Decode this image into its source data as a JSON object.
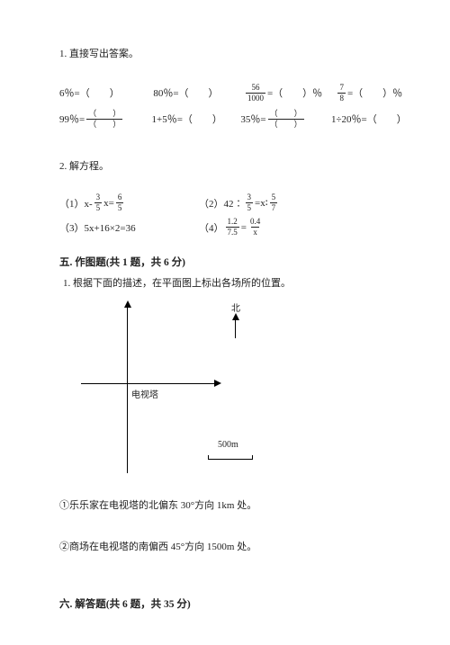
{
  "q1": {
    "title": "1. 直接写出答案。",
    "row1": {
      "a": "6％=（　　）",
      "b": "80％=（　　）",
      "c_pre": "",
      "c_num": "56",
      "c_den": "1000",
      "c_post": " =（　　）％",
      "d_num": "7",
      "d_den": "8",
      "d_post": " =（　　）％"
    },
    "row2": {
      "a_pre": "99％=",
      "a_num": "（　　）",
      "a_den": "（　　）",
      "b": "1+5％=（　　）",
      "c_pre": "35％=",
      "c_num": "（　　）",
      "c_den": "（　　）",
      "d": "1÷20％=（　　）"
    }
  },
  "q2": {
    "title": "2. 解方程。",
    "eq1_pre": "（1）x-",
    "eq1_num": "3",
    "eq1_den": "5",
    "eq1_mid": " x=",
    "eq1_num2": "6",
    "eq1_den2": "5",
    "eq2_pre": "（2）42∶",
    "eq2_num": "3",
    "eq2_den": "5",
    "eq2_mid": " =x∶",
    "eq2_num2": "5",
    "eq2_den2": "7",
    "eq3": "（3）5x+16×2=36",
    "eq4_pre": "（4）",
    "eq4_num": "1.2",
    "eq4_den": "7.5",
    "eq4_mid": " = ",
    "eq4_num2": "0.4",
    "eq4_den2": "x"
  },
  "s5": {
    "title": "五. 作图题(共 1 题，共 6 分)",
    "q1": "1. 根据下面的描述，在平面图上标出各场所的位置。",
    "center": "电视塔",
    "north": "北",
    "scale": "500m",
    "d1": "①乐乐家在电视塔的北偏东 30°方向 1km 处。",
    "d2": "②商场在电视塔的南偏西 45°方向 1500m 处。"
  },
  "s6": {
    "title": "六. 解答题(共 6 题，共 35 分)"
  }
}
